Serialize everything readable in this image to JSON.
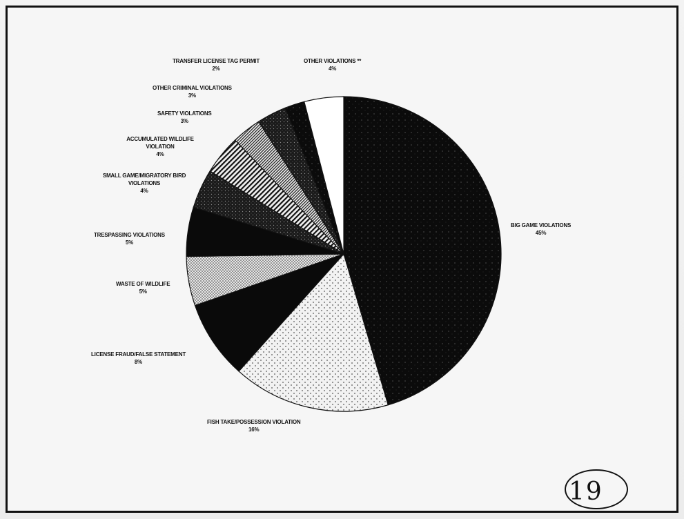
{
  "chart_data": {
    "type": "pie",
    "title": "",
    "slices": [
      {
        "label": "BIG GAME VIOLATIONS",
        "value": 45,
        "pct_label": "45%",
        "pattern": "black-speckle"
      },
      {
        "label": "FISH TAKE/POSSESSION VIOLATION",
        "value": 16,
        "pct_label": "16%",
        "pattern": "dots"
      },
      {
        "label": "LICENSE FRAUD/FALSE STATEMENT",
        "value": 8,
        "pct_label": "8%",
        "pattern": "black"
      },
      {
        "label": "WASTE OF WILDLIFE",
        "value": 5,
        "pct_label": "5%",
        "pattern": "fine-dots"
      },
      {
        "label": "TRESPASSING VIOLATIONS",
        "value": 5,
        "pct_label": "5%",
        "pattern": "black"
      },
      {
        "label": "SMALL GAME/MIGRATORY BIRD VIOLATIONS",
        "value": 4,
        "pct_label": "4%",
        "pattern": "dark-speckle"
      },
      {
        "label": "ACCUMULATED WILDLIFE VIOLATION",
        "value": 4,
        "pct_label": "4%",
        "pattern": "stripes"
      },
      {
        "label": "SAFETY VIOLATIONS",
        "value": 3,
        "pct_label": "3%",
        "pattern": "fine-stripes"
      },
      {
        "label": "OTHER CRIMINAL VIOLATIONS",
        "value": 3,
        "pct_label": "3%",
        "pattern": "dark-speckle"
      },
      {
        "label": "TRANSFER LICENSE TAG PERMIT",
        "value": 2,
        "pct_label": "2%",
        "pattern": "black-speckle"
      },
      {
        "label": "OTHER VIOLATIONS **",
        "value": 4,
        "pct_label": "4%",
        "pattern": "white"
      }
    ],
    "start_angle_deg": 0,
    "direction": "clockwise",
    "legend": "none"
  },
  "page_number": "19",
  "colors": {
    "ink": "#111111",
    "paper": "#f6f6f6"
  }
}
